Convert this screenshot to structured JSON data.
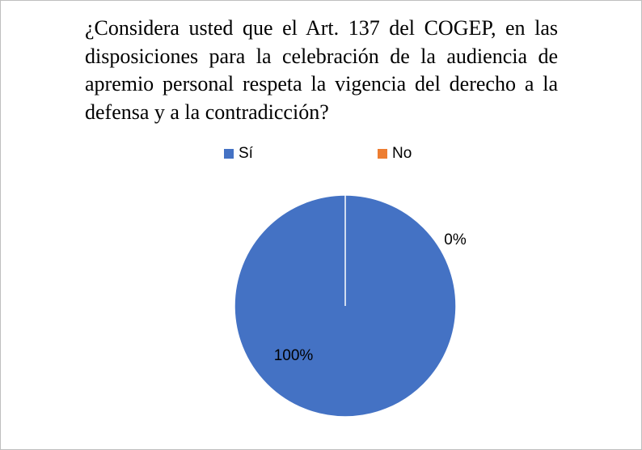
{
  "chart_data": {
    "type": "pie",
    "title": "¿Considera usted que el Art. 137 del COGEP, en las disposiciones para la celebración de la audiencia de apremio personal respeta la vigencia del derecho a la defensa y a la contradicción?",
    "categories": [
      "Sí",
      "No"
    ],
    "values": [
      100,
      0
    ],
    "value_labels": [
      "100%",
      "0%"
    ],
    "colors": [
      "#4472c4",
      "#ed7d31"
    ],
    "legend": "top"
  }
}
